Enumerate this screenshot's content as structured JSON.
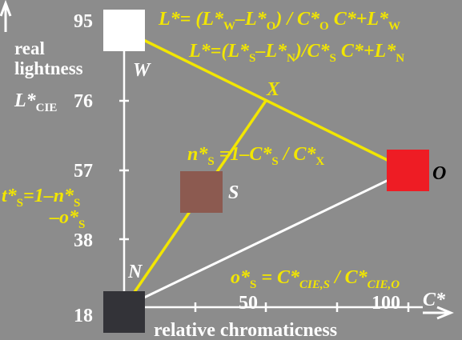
{
  "colors": {
    "background": "#8c8c8c",
    "axis": "#ffffff",
    "line_yellow": "#f2e600",
    "line_white": "#ffffff",
    "patch_W": "#ffffff",
    "patch_O": "#ee1c24",
    "patch_S": "#8c5a50",
    "patch_N": "#333338",
    "text_yellow": "#f2e600",
    "text_white": "#ffffff",
    "text_black": "#000000"
  },
  "y_axis": {
    "label_line1": "real",
    "label_line2": "lightness",
    "label_base": "L*",
    "label_sub": "CIE",
    "ticks": [
      "95",
      "76",
      "57",
      "38",
      "18"
    ]
  },
  "x_axis": {
    "label": "relative chromaticness",
    "symbol": "C*",
    "ticks": [
      "50",
      "100"
    ]
  },
  "points": {
    "W": "W",
    "X": "X",
    "S": "S",
    "O": "O",
    "N": "N"
  },
  "equations": {
    "eq1": {
      "a": "L*= (L*",
      "a_sub": "W",
      "b": "–L*",
      "b_sub": "O",
      "c": ") / C*",
      "c_sub": "O",
      "d": " C*+L*",
      "d_sub": "W"
    },
    "eq2": {
      "a": "L*=(L*",
      "a_sub": "S",
      "b": "–L*",
      "b_sub": "N",
      "c": ")/C*",
      "c_sub": "S",
      "d": " C*+L*",
      "d_sub": "N"
    },
    "eq3": {
      "a": "n*",
      "a_sub": "S",
      "b": " =1–C*",
      "b_sub": "S",
      "c": " / C*",
      "c_sub": "X"
    },
    "eq4": {
      "line1": "t*",
      "line1_sub": "S",
      "line1_rest": "=1–n*",
      "line1_sub2": "S",
      "line2": "–o*",
      "line2_sub": "S"
    },
    "eq5": {
      "a": "o*",
      "a_sub": "S",
      "b": " = C*",
      "b_sub": "CIE,S",
      "c": " / C*",
      "c_sub": "CIE,O"
    }
  }
}
